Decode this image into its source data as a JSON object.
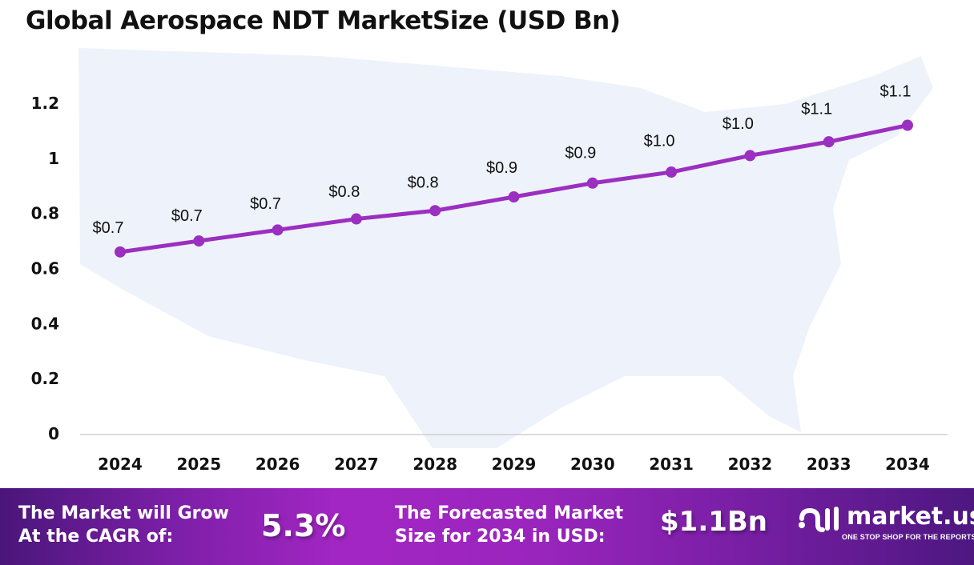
{
  "chart_data": {
    "type": "line",
    "title": "Global Aerospace NDT MarketSize (USD Bn)",
    "categories": [
      "2024",
      "2025",
      "2026",
      "2027",
      "2028",
      "2029",
      "2030",
      "2031",
      "2032",
      "2033",
      "2034"
    ],
    "series": [
      {
        "values": [
          0.66,
          0.7,
          0.74,
          0.78,
          0.81,
          0.86,
          0.91,
          0.95,
          1.01,
          1.06,
          1.12
        ]
      }
    ],
    "data_labels": [
      "$0.7",
      "$0.7",
      "$0.7",
      "$0.8",
      "$0.8",
      "$0.9",
      "$0.9",
      "$1.0",
      "$1.0",
      "$1.1",
      "$1.1"
    ],
    "yticks": [
      "0",
      "0.2",
      "0.4",
      "0.6",
      "0.8",
      "1",
      "1.2"
    ],
    "ylim": [
      0,
      1.2
    ],
    "grid": false,
    "line_color": "#9b2fc0"
  },
  "footer": {
    "cagr_label_1": "The Market will Grow",
    "cagr_label_2": "At the CAGR of:",
    "cagr_value": "5.3%",
    "forecast_label_1": "The Forecasted Market",
    "forecast_label_2": "Size for 2034 in USD:",
    "forecast_value": "$1.1Bn",
    "logo_name": "market.us",
    "logo_tagline": "ONE STOP SHOP FOR THE REPORTS"
  }
}
